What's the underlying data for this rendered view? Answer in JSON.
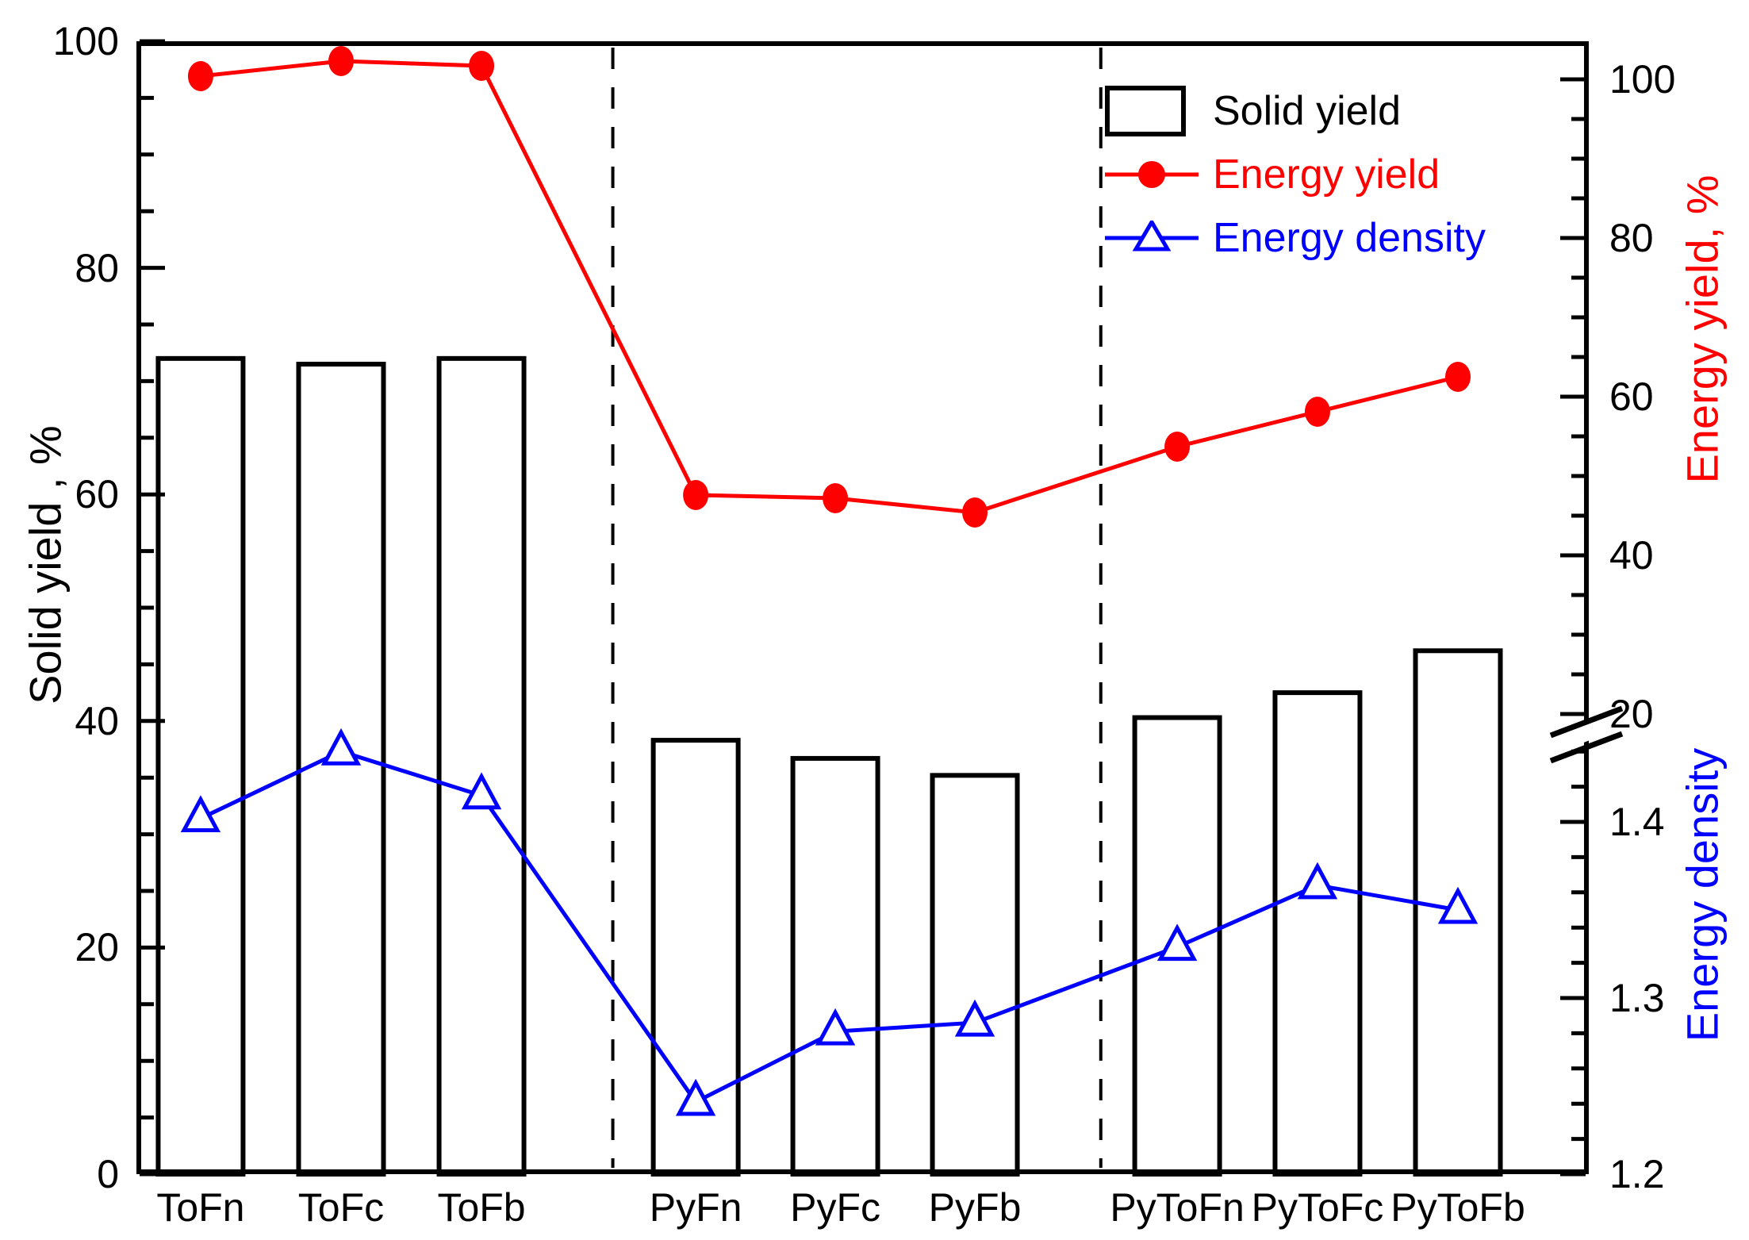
{
  "chart_data": {
    "type": "bar",
    "subtype": "combo-bar-and-two-lines-dual-axis",
    "categories": [
      "ToFn",
      "ToFc",
      "ToFb",
      "PyFn",
      "PyFc",
      "PyFb",
      "PyToFn",
      "PyToFc",
      "PyToFb"
    ],
    "group_separators_after": [
      "ToFb",
      "PyFb"
    ],
    "series": [
      {
        "name": "Solid yield",
        "type": "bar",
        "axis": "left",
        "color": "#000000",
        "fill": "#ffffff",
        "values": [
          72.0,
          71.5,
          72.0,
          38.3,
          36.7,
          35.2,
          40.3,
          42.5,
          46.2
        ]
      },
      {
        "name": "Energy yield",
        "type": "line",
        "marker": "filled-circle",
        "axis": "right_top",
        "color": "#ff0000",
        "values": [
          100.4,
          102.3,
          101.7,
          47.6,
          47.2,
          45.4,
          53.7,
          58.1,
          62.5
        ]
      },
      {
        "name": "Energy density",
        "type": "line",
        "marker": "open-triangle",
        "axis": "right_bottom",
        "color": "#0000ff",
        "values": [
          1.402,
          1.44,
          1.415,
          1.241,
          1.281,
          1.286,
          1.329,
          1.364,
          1.35
        ]
      }
    ],
    "axes": {
      "left": {
        "label": "Solid yield , %",
        "min": 0,
        "max": 100,
        "major_ticks": [
          0,
          20,
          40,
          60,
          80,
          100
        ],
        "minor_step": 5,
        "tick_labels": [
          "0",
          "20",
          "40",
          "60",
          "80",
          "100"
        ]
      },
      "right_top": {
        "label": "Energy yield, %",
        "color": "#ff0000",
        "major_ticks": [
          100,
          80,
          60,
          40,
          20
        ],
        "minor_step": 5,
        "tick_labels": [
          "100",
          "80",
          "60",
          "40",
          "20"
        ]
      },
      "right_bottom": {
        "label": "Energy density",
        "color": "#0000ff",
        "major_ticks": [
          1.4,
          1.3,
          1.2
        ],
        "minor_step": 0.02,
        "tick_labels": [
          "1.4",
          "1.3",
          "1.2"
        ]
      },
      "x": {
        "label": "",
        "tick_labels": [
          "ToFn",
          "ToFc",
          "ToFb",
          "PyFn",
          "PyFc",
          "PyFb",
          "PyToFn",
          "PyToFc",
          "PyToFb"
        ]
      }
    },
    "axis_break": {
      "location": "right-axis-between-energy-yield-20-and-energy-density-1.44",
      "symbol": "double-slash"
    },
    "legend": {
      "position": "top-right-inside",
      "items": [
        {
          "label": "Solid yield",
          "symbol": "open-rectangle",
          "color": "#000000"
        },
        {
          "label": "Energy yield",
          "symbol": "line-filled-circle",
          "color": "#ff0000"
        },
        {
          "label": "Energy density",
          "symbol": "line-open-triangle",
          "color": "#0000ff"
        }
      ]
    },
    "grid": false,
    "background": "#ffffff"
  }
}
